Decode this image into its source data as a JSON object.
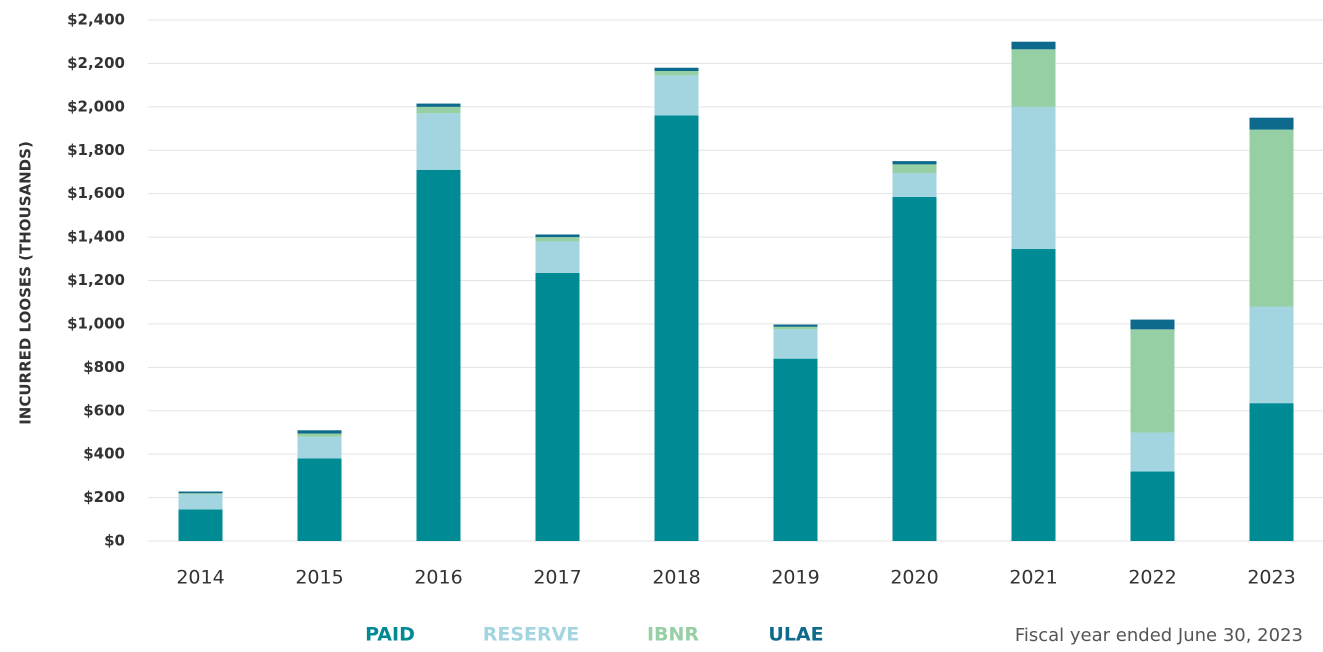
{
  "chart_data": {
    "type": "stacked_bar",
    "y_label": "INCURRED LOOSES (THOUSANDS)",
    "note": "Fiscal year ended June 30, 2023",
    "categories": [
      "2014",
      "2015",
      "2016",
      "2017",
      "2018",
      "2019",
      "2020",
      "2021",
      "2022",
      "2023"
    ],
    "series": [
      {
        "name": "PAID",
        "color": "#008a93",
        "values": [
          145,
          380,
          1710,
          1235,
          1960,
          840,
          1585,
          1345,
          320,
          635
        ]
      },
      {
        "name": "RESERVE",
        "color": "#a2d5e0",
        "values": [
          70,
          100,
          260,
          145,
          185,
          135,
          110,
          655,
          180,
          445
        ]
      },
      {
        "name": "IBNR",
        "color": "#95cfa3",
        "values": [
          5,
          15,
          30,
          20,
          20,
          12,
          40,
          265,
          475,
          815
        ]
      },
      {
        "name": "ULAE",
        "color": "#0e6a8c",
        "values": [
          8,
          15,
          15,
          12,
          15,
          10,
          15,
          35,
          45,
          55
        ]
      }
    ],
    "ylim": [
      0,
      2400
    ],
    "yticks": [
      {
        "value": 0,
        "label": "$0"
      },
      {
        "value": 200,
        "label": "$200"
      },
      {
        "value": 400,
        "label": "$400"
      },
      {
        "value": 600,
        "label": "$600"
      },
      {
        "value": 800,
        "label": "$800"
      },
      {
        "value": 1000,
        "label": "$1,000"
      },
      {
        "value": 1200,
        "label": "$1,200"
      },
      {
        "value": 1400,
        "label": "$1,400"
      },
      {
        "value": 1600,
        "label": "$1,600"
      },
      {
        "value": 1800,
        "label": "$1,800"
      },
      {
        "value": 2000,
        "label": "$2,000"
      },
      {
        "value": 2200,
        "label": "$2,200"
      },
      {
        "value": 2400,
        "label": "$2,400"
      }
    ],
    "grid": true,
    "legend": "bottom"
  }
}
